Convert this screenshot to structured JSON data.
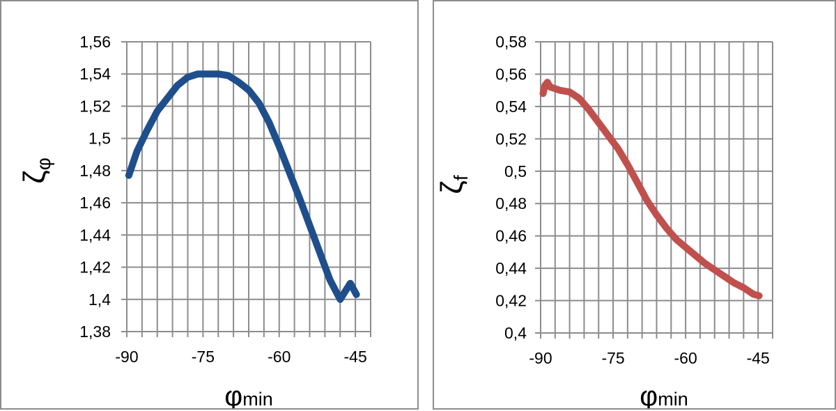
{
  "chart_data": [
    {
      "type": "line",
      "title": "",
      "xlabel": "φ",
      "xlabel_sub": "min",
      "ylabel": "ζ",
      "ylabel_sub": "φ",
      "xlim": [
        -90,
        -42
      ],
      "ylim": [
        1.38,
        1.56
      ],
      "xticks": [
        "-90",
        "-75",
        "-60",
        "-45"
      ],
      "xtick_values": [
        -90,
        -75,
        -60,
        -45
      ],
      "yticks": [
        "1,38",
        "1,4",
        "1,42",
        "1,44",
        "1,46",
        "1,48",
        "1,5",
        "1,52",
        "1,54",
        "1,56"
      ],
      "ytick_values": [
        1.38,
        1.4,
        1.42,
        1.44,
        1.46,
        1.48,
        1.5,
        1.52,
        1.54,
        1.56
      ],
      "grid": true,
      "line_color": "#1f4e8c",
      "series": [
        {
          "x": [
            -89.6,
            -88,
            -86,
            -84,
            -82,
            -80,
            -78,
            -76,
            -74,
            -72,
            -70,
            -68,
            -66,
            -64,
            -62,
            -60,
            -58,
            -56,
            -54,
            -52,
            -50,
            -48,
            -46,
            -44.8
          ],
          "y": [
            1.477,
            1.492,
            1.505,
            1.517,
            1.525,
            1.533,
            1.538,
            1.54,
            1.54,
            1.54,
            1.539,
            1.535,
            1.53,
            1.522,
            1.51,
            1.495,
            1.479,
            1.463,
            1.446,
            1.429,
            1.412,
            1.4,
            1.41,
            1.403
          ]
        }
      ]
    },
    {
      "type": "line",
      "title": "",
      "xlabel": "φ",
      "xlabel_sub": "min",
      "ylabel": "ζ",
      "ylabel_sub": "f",
      "xlim": [
        -90,
        -42
      ],
      "ylim": [
        0.4,
        0.58
      ],
      "xticks": [
        "-90",
        "-75",
        "-60",
        "-45"
      ],
      "xtick_values": [
        -90,
        -75,
        -60,
        -45
      ],
      "yticks": [
        "0,4",
        "0,42",
        "0,44",
        "0,46",
        "0,48",
        "0,5",
        "0,52",
        "0,54",
        "0,56",
        "0,58"
      ],
      "ytick_values": [
        0.4,
        0.42,
        0.44,
        0.46,
        0.48,
        0.5,
        0.52,
        0.54,
        0.56,
        0.58
      ],
      "grid": true,
      "line_color": "#c0504d",
      "series": [
        {
          "x": [
            -89.5,
            -89.1,
            -88.6,
            -88,
            -87,
            -86,
            -84,
            -82,
            -80,
            -78,
            -76,
            -74,
            -72,
            -70,
            -68,
            -66,
            -64,
            -62,
            -60,
            -58,
            -56,
            -54,
            -52,
            -50,
            -48,
            -46,
            -44.8
          ],
          "y": [
            0.548,
            0.553,
            0.555,
            0.552,
            0.551,
            0.55,
            0.549,
            0.545,
            0.538,
            0.53,
            0.522,
            0.514,
            0.504,
            0.493,
            0.482,
            0.473,
            0.465,
            0.458,
            0.453,
            0.448,
            0.443,
            0.439,
            0.435,
            0.431,
            0.428,
            0.424,
            0.423
          ]
        }
      ]
    }
  ]
}
